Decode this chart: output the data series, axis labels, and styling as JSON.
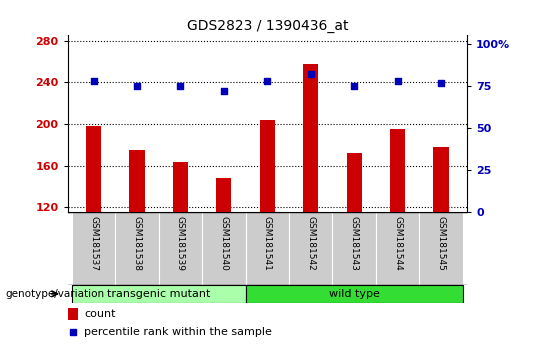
{
  "title": "GDS2823 / 1390436_at",
  "samples": [
    "GSM181537",
    "GSM181538",
    "GSM181539",
    "GSM181540",
    "GSM181541",
    "GSM181542",
    "GSM181543",
    "GSM181544",
    "GSM181545"
  ],
  "counts": [
    198,
    175,
    163,
    148,
    204,
    258,
    172,
    195,
    178
  ],
  "percentiles": [
    78,
    75,
    75,
    72,
    78,
    82,
    75,
    78,
    77
  ],
  "ylim_left": [
    115,
    285
  ],
  "ylim_right": [
    0,
    105
  ],
  "yticks_left": [
    120,
    160,
    200,
    240,
    280
  ],
  "yticks_right": [
    0,
    25,
    50,
    75,
    100
  ],
  "yticklabels_right": [
    "0",
    "25",
    "50",
    "75",
    "100%"
  ],
  "bar_color": "#CC0000",
  "dot_color": "#0000BB",
  "bar_width": 0.35,
  "groups": [
    {
      "label": "transgenic mutant",
      "start": 0,
      "end": 3,
      "color": "#AAFFAA"
    },
    {
      "label": "wild type",
      "start": 4,
      "end": 8,
      "color": "#33DD33"
    }
  ],
  "group_label": "genotype/variation",
  "legend_count_label": "count",
  "legend_percentile_label": "percentile rank within the sample",
  "tick_label_color_left": "#CC0000",
  "tick_label_color_right": "#0000BB",
  "background_color": "#FFFFFF",
  "xticklabel_bg": "#CCCCCC"
}
